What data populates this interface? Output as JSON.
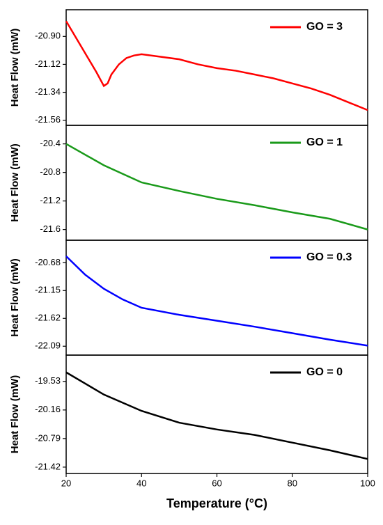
{
  "chart_data": [
    {
      "type": "line",
      "ylabel": "Heat Flow (mW)",
      "x": [
        20,
        22,
        24,
        26,
        28,
        30,
        31,
        32,
        34,
        36,
        38,
        40,
        45,
        50,
        55,
        60,
        65,
        70,
        75,
        80,
        85,
        90,
        95,
        100
      ],
      "series": [
        {
          "name": "GO = 3",
          "color": "#ff0000",
          "values": [
            -20.78,
            -20.88,
            -20.98,
            -21.08,
            -21.18,
            -21.29,
            -21.27,
            -21.2,
            -21.12,
            -21.07,
            -21.05,
            -21.04,
            -21.06,
            -21.08,
            -21.12,
            -21.15,
            -21.17,
            -21.2,
            -21.23,
            -21.27,
            -21.31,
            -21.36,
            -21.42,
            -21.48
          ]
        }
      ],
      "xlim": [
        20,
        100
      ],
      "ylim": [
        -21.6,
        -20.69
      ],
      "yticks": [
        {
          "value": -20.9,
          "label": "-20.90"
        },
        -21.12,
        -21.34,
        -21.56
      ]
    },
    {
      "type": "line",
      "ylabel": "Heat Flow (mW)",
      "x": [
        20,
        30,
        40,
        50,
        60,
        70,
        80,
        90,
        100
      ],
      "series": [
        {
          "name": "GO = 1",
          "color": "#1a9a1a",
          "values": [
            -20.4,
            -20.7,
            -20.94,
            -21.06,
            -21.17,
            -21.26,
            -21.36,
            -21.45,
            -21.6
          ]
        }
      ],
      "xlim": [
        20,
        100
      ],
      "ylim": [
        -21.75,
        -20.14
      ],
      "yticks": [
        -20.4,
        -20.8,
        -21.2,
        -21.6
      ]
    },
    {
      "type": "line",
      "ylabel": "Heat Flow (mW)",
      "x": [
        20,
        25,
        30,
        35,
        40,
        50,
        60,
        70,
        80,
        90,
        100
      ],
      "series": [
        {
          "name": "GO = 0.3",
          "color": "#0000ff",
          "values": [
            -20.57,
            -20.88,
            -21.12,
            -21.3,
            -21.44,
            -21.56,
            -21.66,
            -21.76,
            -21.87,
            -21.98,
            -22.08
          ]
        }
      ],
      "xlim": [
        20,
        100
      ],
      "ylim": [
        -22.24,
        -20.3
      ],
      "yticks": [
        -20.68,
        -21.15,
        -21.62,
        -22.09
      ]
    },
    {
      "type": "line",
      "ylabel": "Heat Flow (mW)",
      "xlabel": "Temperature (°C)",
      "x": [
        20,
        30,
        40,
        50,
        60,
        70,
        80,
        90,
        100
      ],
      "series": [
        {
          "name": "GO = 0",
          "color": "#000000",
          "values": [
            -19.33,
            -19.82,
            -20.18,
            -20.44,
            -20.59,
            -20.71,
            -20.88,
            -21.05,
            -21.24
          ]
        }
      ],
      "xlim": [
        20,
        100
      ],
      "ylim": [
        -21.56,
        -18.95
      ],
      "yticks": [
        -19.53,
        -20.16,
        -20.79,
        -21.42
      ],
      "xticks": [
        20,
        40,
        60,
        80,
        100
      ]
    }
  ]
}
